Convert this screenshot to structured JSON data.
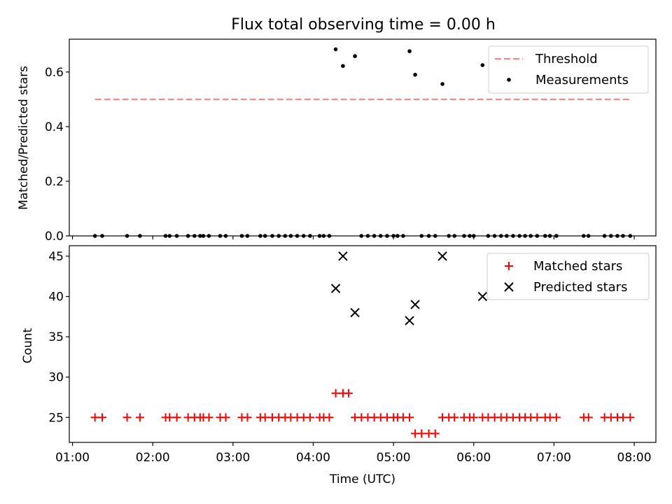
{
  "chart_data": {
    "title": "Flux total observing time = 0.00 h",
    "xlabel": "Time (UTC)",
    "x_ticks": [
      "01:00",
      "02:00",
      "03:00",
      "04:00",
      "05:00",
      "06:00",
      "07:00",
      "08:00"
    ],
    "xlim_hours": [
      0.96,
      8.27
    ],
    "panels": [
      {
        "type": "scatter",
        "ylabel": "Matched/Predicted stars",
        "ylim": [
          0.0,
          0.72
        ],
        "y_ticks": [
          0.0,
          0.2,
          0.4,
          0.6
        ],
        "y_tick_labels": [
          "0.0",
          "0.2",
          "0.4",
          "0.6"
        ],
        "legend_position": "top-right",
        "threshold": {
          "name": "Threshold",
          "value": 0.5,
          "x_range": [
            1.28,
            7.95
          ],
          "color": "#ff7f7f"
        },
        "series": [
          {
            "name": "Measurements",
            "color": "#000000",
            "marker": "dot",
            "x": [
              1.28,
              1.37,
              1.68,
              1.84,
              2.16,
              2.21,
              2.3,
              2.44,
              2.52,
              2.59,
              2.63,
              2.7,
              2.84,
              2.91,
              3.11,
              3.18,
              3.34,
              3.4,
              3.49,
              3.57,
              3.65,
              3.72,
              3.8,
              3.88,
              3.96,
              4.08,
              4.13,
              4.2,
              4.28,
              4.37,
              4.52,
              4.6,
              4.68,
              4.76,
              4.84,
              4.92,
              5.0,
              5.05,
              5.12,
              5.2,
              5.27,
              5.35,
              5.44,
              5.52,
              5.61,
              5.69,
              5.76,
              5.88,
              5.95,
              6.0,
              6.11,
              6.18,
              6.26,
              6.34,
              6.41,
              6.49,
              6.57,
              6.64,
              6.71,
              6.79,
              6.89,
              6.95,
              7.03,
              7.37,
              7.43,
              7.63,
              7.71,
              7.79,
              7.86,
              7.95
            ],
            "y": [
              0,
              0,
              0,
              0,
              0,
              0,
              0,
              0,
              0,
              0,
              0,
              0,
              0,
              0,
              0,
              0,
              0,
              0,
              0,
              0,
              0,
              0,
              0,
              0,
              0,
              0,
              0,
              0,
              0.683,
              0.622,
              0.658,
              0,
              0,
              0,
              0,
              0,
              0,
              0,
              0,
              0.676,
              0.59,
              0,
              0,
              0,
              0.556,
              0,
              0,
              0,
              0,
              0,
              0.625,
              0,
              0,
              0,
              0,
              0,
              0,
              0,
              0,
              0,
              0,
              0,
              0,
              0,
              0,
              0,
              0,
              0,
              0,
              0
            ]
          }
        ]
      },
      {
        "type": "scatter",
        "ylabel": "Count",
        "ylim": [
          21.9,
          46.3
        ],
        "y_ticks": [
          25,
          30,
          35,
          40,
          45
        ],
        "y_tick_labels": [
          "25",
          "30",
          "35",
          "40",
          "45"
        ],
        "legend_position": "top-right",
        "series": [
          {
            "name": "Matched stars",
            "color": "#ff0000",
            "marker": "plus",
            "x": [
              1.28,
              1.37,
              1.68,
              1.84,
              2.16,
              2.21,
              2.3,
              2.44,
              2.52,
              2.59,
              2.63,
              2.7,
              2.84,
              2.91,
              3.11,
              3.18,
              3.34,
              3.4,
              3.49,
              3.57,
              3.65,
              3.72,
              3.8,
              3.88,
              3.96,
              4.08,
              4.13,
              4.2,
              4.28,
              4.37,
              4.44,
              4.52,
              4.6,
              4.68,
              4.76,
              4.84,
              4.92,
              5.0,
              5.05,
              5.12,
              5.2,
              5.27,
              5.35,
              5.44,
              5.52,
              5.61,
              5.69,
              5.76,
              5.88,
              5.95,
              6.0,
              6.11,
              6.18,
              6.26,
              6.34,
              6.41,
              6.49,
              6.57,
              6.64,
              6.71,
              6.79,
              6.89,
              6.95,
              7.03,
              7.37,
              7.43,
              7.63,
              7.71,
              7.79,
              7.86,
              7.95
            ],
            "y": [
              25,
              25,
              25,
              25,
              25,
              25,
              25,
              25,
              25,
              25,
              25,
              25,
              25,
              25,
              25,
              25,
              25,
              25,
              25,
              25,
              25,
              25,
              25,
              25,
              25,
              25,
              25,
              25,
              28,
              28,
              28,
              25,
              25,
              25,
              25,
              25,
              25,
              25,
              25,
              25,
              25,
              23,
              23,
              23,
              23,
              25,
              25,
              25,
              25,
              25,
              25,
              25,
              25,
              25,
              25,
              25,
              25,
              25,
              25,
              25,
              25,
              25,
              25,
              25,
              25,
              25,
              25,
              25,
              25,
              25,
              25
            ]
          },
          {
            "name": "Predicted stars",
            "color": "#000000",
            "marker": "x",
            "x": [
              4.28,
              4.37,
              4.52,
              5.2,
              5.27,
              5.61,
              6.11
            ],
            "y": [
              41,
              45,
              38,
              37,
              39,
              45,
              40
            ]
          }
        ]
      }
    ]
  }
}
